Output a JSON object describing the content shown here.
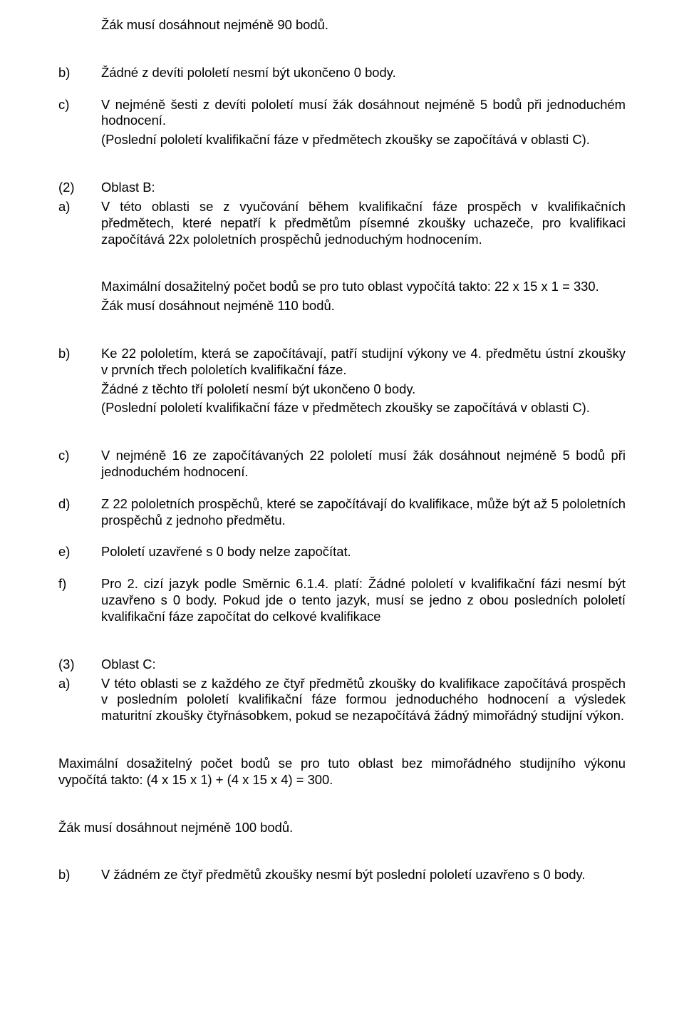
{
  "p0": "Žák musí dosáhnout nejméně 90 bodů.",
  "b1_lbl": "b)",
  "b1_txt": "Žádné z devíti pololetí nesmí být ukončeno 0 body.",
  "c1_lbl": "c)",
  "c1_txt": "V nejméně šesti z devíti pololetí musí žák dosáhnout nejméně 5 bodů při jednoduchém hodnocení.",
  "c1_sub": "(Poslední pololetí kvalifikační fáze v předmětech zkoušky se započítává v oblasti C).",
  "s2_lbl": "(2)",
  "s2_txt": "Oblast B:",
  "a2_lbl": "a)",
  "a2_txt": "V této oblasti se z vyučování během kvalifikační fáze prospěch v kvalifikačních předmětech, které nepatří k předmětům písemné zkoušky uchazeče, pro kvalifikaci započítává 22x pololetních prospěchů jednoduchým hodnocením.",
  "a2_calc": "Maximální dosažitelný počet bodů se pro tuto oblast vypočítá takto: 22 x 15 x 1 = 330.",
  "a2_min": "Žák musí dosáhnout nejméně 110 bodů.",
  "b2_lbl": "b)",
  "b2_txt": "Ke 22 pololetím, která se započítávají, patří studijní výkony ve 4. předmětu ústní zkoušky v prvních třech pololetích kvalifikační fáze.",
  "b2_sub1": "Žádné z těchto tří pololetí nesmí být ukončeno 0 body.",
  "b2_sub2": "(Poslední pololetí kvalifikační fáze v předmětech zkoušky se započítává v oblasti C).",
  "c2_lbl": "c)",
  "c2_txt": "V nejméně 16 ze započítávaných 22 pololetí musí žák dosáhnout nejméně 5 bodů při jednoduchém hodnocení.",
  "d2_lbl": "d)",
  "d2_txt": "Z 22 pololetních prospěchů, které se započítávají do kvalifikace, může být až 5 pololetních prospěchů z jednoho předmětu.",
  "e2_lbl": "e)",
  "e2_txt": "Pololetí uzavřené s 0 body nelze započítat.",
  "f2_lbl": "f)",
  "f2_txt": "Pro 2. cizí jazyk podle Směrnic 6.1.4. platí: Žádné pololetí v kvalifikační fázi nesmí být uzavřeno s 0 body. Pokud jde o tento jazyk, musí se jedno z obou posledních pololetí kvalifikační fáze započítat do celkové kvalifikace",
  "s3_lbl": "(3)",
  "s3_txt": "Oblast C:",
  "a3_lbl": "a)",
  "a3_txt": "V této oblasti se z každého ze čtyř předmětů zkoušky do kvalifikace započítává prospěch v posledním pololetí kvalifikační fáze formou jednoduchého hodnocení a výsledek maturitní zkoušky čtyřnásobkem, pokud se nezapočítává žádný mimořádný studijní výkon.",
  "s3_calc": "Maximální dosažitelný počet bodů se pro tuto oblast bez mimořádného studijního výkonu vypočítá takto: (4 x 15 x 1) + (4 x 15 x 4) = 300.",
  "s3_min": "Žák musí dosáhnout nejméně 100 bodů.",
  "b3_lbl": "b)",
  "b3_txt": "V žádném ze čtyř předmětů zkoušky nesmí být poslední pololetí uzavřeno s 0 body."
}
